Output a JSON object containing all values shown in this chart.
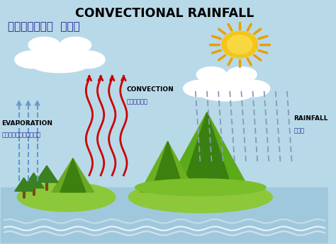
{
  "title": "CONVECTIONAL RAINFALL",
  "subtitle": "ಸಪ್ತರಣಿ  ಮಳೆ",
  "bg_color": "#b8d9e8",
  "water_color": "#a0c8dc",
  "sun_color": "#f5c518",
  "sun_ray_color": "#e8a000",
  "evap_label": "EVAPORATION",
  "evap_sub": "ಆವಿಯಾಗುವಿಕೆ",
  "conv_label": "CONVECTION",
  "conv_sub": "ಪ್ರವಹನ",
  "rain_label": "RAINFALL",
  "rain_sub": "ಮಳೆ",
  "arrow_color_red": "#cc0000",
  "arrow_color_blue": "#6699cc",
  "rain_color": "#8899bb",
  "island1_color": "#8cc83a",
  "island2_color": "#7ab830",
  "mountain_dark": "#3d8010",
  "tree_green": "#3a8020",
  "tree_trunk": "#7a4a1a",
  "cloud_color": "#ffffff",
  "label_color": "#000000",
  "sub_color": "#222299"
}
